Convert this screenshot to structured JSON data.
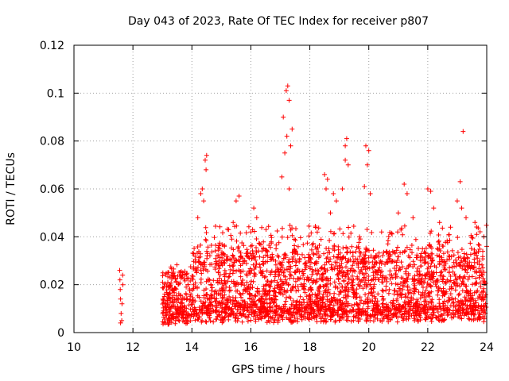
{
  "chart_data": {
    "type": "scatter",
    "title": "Day 043 of 2023, Rate Of TEC Index for receiver p807",
    "xlabel": "GPS time / hours",
    "ylabel": "ROTI / TECUs",
    "xlim": [
      10,
      24
    ],
    "ylim": [
      0,
      0.12
    ],
    "xticks": [
      10,
      12,
      14,
      16,
      18,
      20,
      22,
      24
    ],
    "xtick_labels": [
      "10",
      "12",
      "14",
      "16",
      "18",
      "20",
      "22",
      "24"
    ],
    "yticks": [
      0,
      0.02,
      0.04,
      0.06,
      0.08,
      0.1,
      0.12
    ],
    "ytick_labels": [
      "0",
      "0.02",
      "0.04",
      "0.06",
      "0.08",
      "0.1",
      "0.12"
    ],
    "grid": true,
    "marker": "+",
    "marker_color": "#ff0000",
    "series": [
      {
        "name": "p807 ROTI",
        "points": [
          [
            11.55,
            0.026
          ],
          [
            11.56,
            0.022
          ],
          [
            11.57,
            0.018
          ],
          [
            11.58,
            0.014
          ],
          [
            11.6,
            0.008
          ],
          [
            11.62,
            0.005
          ],
          [
            11.63,
            0.012
          ],
          [
            11.65,
            0.024
          ],
          [
            11.66,
            0.02
          ],
          [
            11.58,
            0.004
          ],
          [
            14.3,
            0.058
          ],
          [
            14.35,
            0.06
          ],
          [
            14.45,
            0.072
          ],
          [
            14.48,
            0.068
          ],
          [
            14.5,
            0.074
          ],
          [
            14.4,
            0.055
          ],
          [
            14.2,
            0.048
          ],
          [
            15.5,
            0.055
          ],
          [
            15.6,
            0.057
          ],
          [
            15.4,
            0.046
          ],
          [
            16.1,
            0.052
          ],
          [
            16.2,
            0.048
          ],
          [
            16.0,
            0.042
          ],
          [
            17.1,
            0.09
          ],
          [
            17.2,
            0.101
          ],
          [
            17.25,
            0.103
          ],
          [
            17.3,
            0.097
          ],
          [
            17.22,
            0.082
          ],
          [
            17.35,
            0.078
          ],
          [
            17.4,
            0.085
          ],
          [
            17.15,
            0.075
          ],
          [
            17.05,
            0.065
          ],
          [
            17.3,
            0.06
          ],
          [
            18.5,
            0.066
          ],
          [
            18.6,
            0.064
          ],
          [
            18.8,
            0.058
          ],
          [
            18.9,
            0.055
          ],
          [
            18.7,
            0.05
          ],
          [
            18.55,
            0.06
          ],
          [
            19.2,
            0.078
          ],
          [
            19.25,
            0.081
          ],
          [
            19.3,
            0.07
          ],
          [
            19.2,
            0.072
          ],
          [
            19.1,
            0.06
          ],
          [
            19.9,
            0.078
          ],
          [
            20.0,
            0.076
          ],
          [
            19.95,
            0.07
          ],
          [
            19.85,
            0.061
          ],
          [
            20.05,
            0.058
          ],
          [
            21.2,
            0.062
          ],
          [
            21.3,
            0.058
          ],
          [
            21.0,
            0.05
          ],
          [
            21.5,
            0.048
          ],
          [
            22.0,
            0.06
          ],
          [
            22.1,
            0.059
          ],
          [
            22.2,
            0.052
          ],
          [
            22.4,
            0.046
          ],
          [
            23.0,
            0.055
          ],
          [
            23.1,
            0.063
          ],
          [
            23.15,
            0.052
          ],
          [
            23.2,
            0.084
          ],
          [
            23.3,
            0.048
          ],
          [
            23.6,
            0.046
          ],
          [
            23.9,
            0.04
          ],
          [
            24.0,
            0.036
          ]
        ]
      }
    ]
  }
}
